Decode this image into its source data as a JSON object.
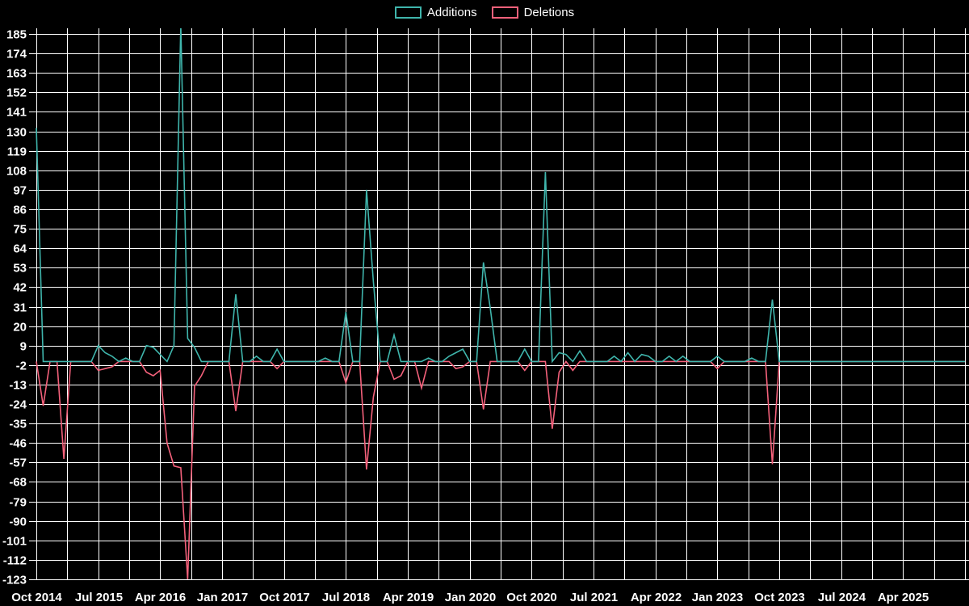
{
  "chart_data": {
    "type": "line",
    "title": "",
    "background_color": "#000000",
    "grid": true,
    "grid_color": "#ffffff",
    "text_color": "#ffffff",
    "legend_position": "top-center",
    "x_axis": {
      "start": "2014-10",
      "interval": "month",
      "months_shown": 136,
      "tick_labels": [
        "Oct 2014",
        "Jul 2015",
        "Apr 2016",
        "Jan 2017",
        "Oct 2017",
        "Jul 2018",
        "Apr 2019",
        "Jan 2020",
        "Oct 2020",
        "Jul 2021",
        "Apr 2022",
        "Jan 2023",
        "Oct 2023",
        "Jul 2024",
        "Apr 2025"
      ],
      "label_every_months": 9,
      "gridline_every_months": 4.5
    },
    "y_axis": {
      "min": -123,
      "max": 185,
      "step": 11,
      "ticks": [
        185,
        174,
        163,
        152,
        141,
        130,
        119,
        108,
        97,
        86,
        75,
        64,
        53,
        42,
        31,
        20,
        9,
        -2,
        -13,
        -24,
        -35,
        -46,
        -57,
        -68,
        -79,
        -90,
        -101,
        -112,
        -123
      ]
    },
    "series": [
      {
        "name": "Additions",
        "color": "#3fb5ac",
        "baseline": 0,
        "spikes": {
          "2014-10": 132,
          "2015-07": 9,
          "2015-08": 5,
          "2015-09": 3,
          "2015-11": 2,
          "2016-02": 9,
          "2016-03": 8,
          "2016-04": 4,
          "2016-06": 9,
          "2016-07": 190,
          "2016-08": 13,
          "2016-09": 8,
          "2017-03": 38,
          "2017-06": 3,
          "2017-09": 7,
          "2018-04": 2,
          "2018-07": 28,
          "2018-10": 97,
          "2018-11": 45,
          "2019-02": 15,
          "2019-07": 2,
          "2019-10": 3,
          "2019-11": 5,
          "2019-12": 7,
          "2020-03": 56,
          "2020-04": 30,
          "2020-09": 7,
          "2020-12": 107,
          "2021-02": 5,
          "2021-03": 4,
          "2021-05": 6,
          "2021-10": 3,
          "2021-12": 5,
          "2022-02": 4,
          "2022-03": 3,
          "2022-06": 3,
          "2022-08": 3,
          "2023-01": 3,
          "2023-06": 2,
          "2023-09": 35
        }
      },
      {
        "name": "Deletions",
        "color": "#f4617b",
        "baseline": 0,
        "spikes": {
          "2014-11": -25,
          "2015-02": -55,
          "2015-07": -5,
          "2015-08": -4,
          "2015-09": -3,
          "2016-02": -6,
          "2016-03": -8,
          "2016-04": -5,
          "2016-05": -46,
          "2016-06": -59,
          "2016-07": -60,
          "2016-08": -123,
          "2016-09": -14,
          "2016-10": -8,
          "2017-03": -28,
          "2017-09": -4,
          "2018-07": -12,
          "2018-10": -61,
          "2018-11": -20,
          "2019-02": -10,
          "2019-03": -8,
          "2019-06": -15,
          "2019-11": -4,
          "2019-12": -3,
          "2020-03": -27,
          "2020-09": -5,
          "2021-01": -38,
          "2021-02": -6,
          "2021-04": -5,
          "2023-01": -4,
          "2023-09": -58
        }
      }
    ]
  }
}
